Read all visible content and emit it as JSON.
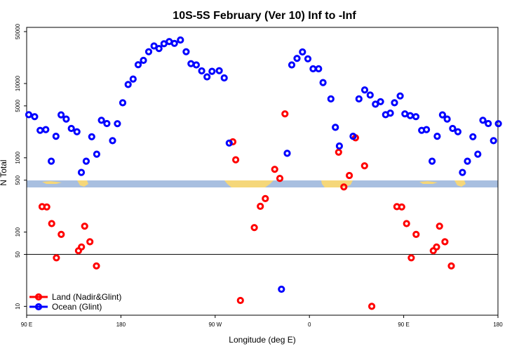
{
  "chart_data": {
    "type": "scatter",
    "title": "10S-5S February (Ver 10)   Inf to -Inf",
    "xlabel": "Longitude (deg E)",
    "ylabel": "N Total",
    "xlim": [
      90,
      450
    ],
    "ylim": [
      7.6,
      57000
    ],
    "yscale": "log",
    "x_ticks": [
      {
        "value": 90,
        "label": "90 E"
      },
      {
        "value": 162,
        "label": "180"
      },
      {
        "value": 234,
        "label": "90 W"
      },
      {
        "value": 306,
        "label": "0"
      },
      {
        "value": 378,
        "label": "90 E"
      },
      {
        "value": 450,
        "label": "180"
      }
    ],
    "y_ticks": [
      {
        "value": 10,
        "label": "10"
      },
      {
        "value": 50,
        "label": "50"
      },
      {
        "value": 100,
        "label": "100"
      },
      {
        "value": 500,
        "label": "500"
      },
      {
        "value": 1000,
        "label": "1000"
      },
      {
        "value": 5000,
        "label": "5000"
      },
      {
        "value": 10000,
        "label": "10000"
      },
      {
        "value": 50000,
        "label": "50000"
      }
    ],
    "reference_line": 50,
    "grid": false,
    "legend_position": "bottom-left",
    "colors": {
      "land": "#ff0000",
      "ocean": "#0000ff",
      "map_sea": "#a8bfe0",
      "map_land": "#f5d77a"
    },
    "series": [
      {
        "name": "Land (Nadir&Glint)",
        "color": "#ff0000",
        "points": [
          [
            101.8,
            220
          ],
          [
            105.4,
            218
          ],
          [
            109.1,
            130
          ],
          [
            112.7,
            45
          ],
          [
            116.4,
            93
          ],
          [
            129.6,
            56
          ],
          [
            131.9,
            63
          ],
          [
            134.3,
            120
          ],
          [
            138.3,
            74
          ],
          [
            143.3,
            35
          ],
          [
            247.5,
            1640
          ],
          [
            249.7,
            940
          ],
          [
            253.3,
            12
          ],
          [
            263.9,
            115
          ],
          [
            268.5,
            222
          ],
          [
            272.3,
            282
          ],
          [
            279.5,
            700
          ],
          [
            283.4,
            528
          ],
          [
            287.3,
            3900
          ],
          [
            328.3,
            1190
          ],
          [
            332.3,
            405
          ],
          [
            336.5,
            578
          ],
          [
            341.2,
            1860
          ],
          [
            348.1,
            780
          ],
          [
            353.6,
            10
          ],
          [
            372.8,
            220
          ],
          [
            376.5,
            218
          ],
          [
            380.2,
            130
          ],
          [
            383.8,
            45
          ],
          [
            387.5,
            93
          ],
          [
            400.6,
            56
          ],
          [
            403.1,
            63
          ],
          [
            405.4,
            120
          ],
          [
            409.5,
            74
          ],
          [
            414.4,
            35
          ]
        ]
      },
      {
        "name": "Ocean (Glint)",
        "color": "#0000ff",
        "points": [
          [
            91.6,
            3800
          ],
          [
            96.1,
            3580
          ],
          [
            100.3,
            2340
          ],
          [
            104.6,
            2400
          ],
          [
            108.8,
            900
          ],
          [
            112.4,
            1950
          ],
          [
            116.3,
            3790
          ],
          [
            120.2,
            3320
          ],
          [
            124.1,
            2480
          ],
          [
            128.4,
            2240
          ],
          [
            131.8,
            636
          ],
          [
            135.5,
            900
          ],
          [
            139.7,
            1920
          ],
          [
            143.5,
            1120
          ],
          [
            147.1,
            3200
          ],
          [
            151.3,
            2890
          ],
          [
            155.6,
            1700
          ],
          [
            159.3,
            2880
          ],
          [
            163.4,
            5500
          ],
          [
            167.5,
            9700
          ],
          [
            171.3,
            11500
          ],
          [
            175.2,
            17900
          ],
          [
            179.2,
            20500
          ],
          [
            183.2,
            26800
          ],
          [
            187.3,
            32000
          ],
          [
            191.1,
            29600
          ],
          [
            194.9,
            34300
          ],
          [
            198.9,
            36700
          ],
          [
            202.9,
            34700
          ],
          [
            207.5,
            38500
          ],
          [
            211.8,
            26800
          ],
          [
            215.5,
            18500
          ],
          [
            219.6,
            17800
          ],
          [
            223.7,
            14800
          ],
          [
            227.8,
            12300
          ],
          [
            231.6,
            14600
          ],
          [
            237.1,
            14900
          ],
          [
            240.9,
            11900
          ],
          [
            244.7,
            1580
          ],
          [
            289.0,
            1150
          ],
          [
            292.5,
            17800
          ],
          [
            296.5,
            21800
          ],
          [
            300.7,
            26600
          ],
          [
            304.8,
            21500
          ],
          [
            308.8,
            15800
          ],
          [
            313.0,
            15800
          ],
          [
            316.4,
            10300
          ],
          [
            322.4,
            6200
          ],
          [
            325.8,
            2570
          ],
          [
            328.9,
            1440
          ],
          [
            339.3,
            1950
          ],
          [
            343.8,
            6200
          ],
          [
            348.2,
            8200
          ],
          [
            352.4,
            7000
          ],
          [
            356.4,
            5270
          ],
          [
            360.3,
            5700
          ],
          [
            364.2,
            3800
          ],
          [
            367.8,
            4000
          ],
          [
            371.0,
            5500
          ],
          [
            375.3,
            6800
          ],
          [
            378.9,
            3900
          ],
          [
            383.0,
            3700
          ],
          [
            387.3,
            3580
          ],
          [
            391.7,
            2340
          ],
          [
            395.4,
            2400
          ],
          [
            399.7,
            900
          ],
          [
            403.6,
            1950
          ],
          [
            407.6,
            3790
          ],
          [
            411.2,
            3320
          ],
          [
            415.4,
            2480
          ],
          [
            419.4,
            2240
          ],
          [
            422.9,
            636
          ],
          [
            426.7,
            900
          ],
          [
            430.9,
            1920
          ],
          [
            434.6,
            1120
          ],
          [
            438.5,
            3200
          ],
          [
            442.6,
            2890
          ],
          [
            446.6,
            1700
          ],
          [
            450.3,
            2880
          ],
          [
            284.6,
            17
          ]
        ]
      }
    ]
  }
}
